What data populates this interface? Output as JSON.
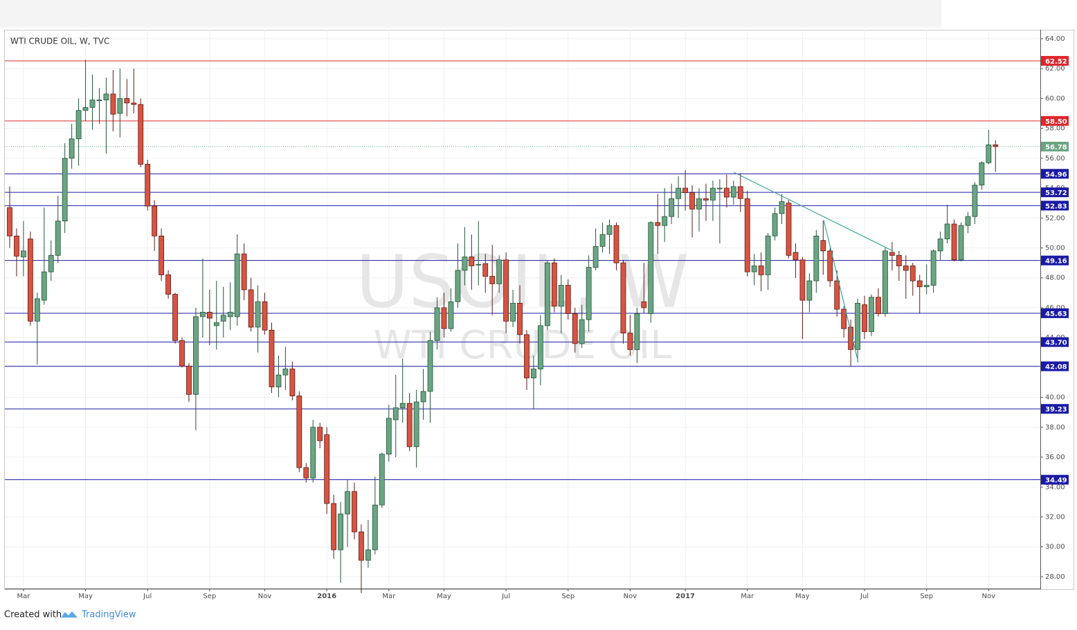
{
  "chart_data": {
    "type": "candlestick",
    "title": "WTI CRUDE OIL, W, TVC",
    "watermark": [
      "USOIL, W",
      "WTI CRUDE OIL"
    ],
    "footer": {
      "prefix": "Created with",
      "brand": "TradingView"
    },
    "up_color": "#6ba583",
    "down_color": "#d75442",
    "grid": true,
    "categories": [
      null,
      null,
      "Mar",
      null,
      null,
      null,
      null,
      null,
      null,
      null,
      null,
      "May",
      null,
      null,
      null,
      null,
      null,
      null,
      null,
      null,
      "Jul",
      null,
      null,
      null,
      null,
      null,
      null,
      null,
      null,
      "Sep",
      null,
      null,
      null,
      null,
      null,
      null,
      null,
      "Nov",
      null,
      null,
      null,
      null,
      null,
      null,
      null,
      null,
      "2016",
      null,
      null,
      null,
      null,
      null,
      null,
      null,
      null,
      "Mar",
      null,
      null,
      null,
      null,
      null,
      null,
      null,
      "May",
      null,
      null,
      null,
      null,
      null,
      null,
      null,
      null,
      "Jul",
      null,
      null,
      null,
      null,
      null,
      null,
      null,
      null,
      "Sep",
      null,
      null,
      null,
      null,
      null,
      null,
      null,
      null,
      "Nov",
      null,
      null,
      null,
      null,
      null,
      null,
      null,
      "2017",
      null,
      null,
      null,
      null,
      null,
      null,
      null,
      null,
      "Mar",
      null,
      null,
      null,
      null,
      null,
      null,
      null,
      "May",
      null,
      null,
      null,
      null,
      null,
      null,
      null,
      null,
      "Jul",
      null,
      null,
      null,
      null,
      null,
      null,
      null,
      null,
      "Sep",
      null,
      null,
      null,
      null,
      null,
      null,
      null,
      null,
      "Nov",
      null
    ],
    "open": [
      52.7,
      50.8,
      49.4,
      50.6,
      45.1,
      46.5,
      48.4,
      49.5,
      51.8,
      56,
      57.3,
      59.2,
      59.4,
      59.9,
      59.9,
      60.3,
      59,
      60,
      59.7,
      59.6,
      55.6,
      52.8,
      50.8,
      48.2,
      46.9,
      43.8,
      42.1,
      40.2,
      45.4,
      45.7,
      44.8,
      45.1,
      45.4,
      45.4,
      49.6,
      47.2,
      44.7,
      46.4,
      44.5,
      40.7,
      41.5,
      41.9,
      40.1,
      35.3,
      34.6,
      38,
      37.5,
      32.9,
      29.8,
      32.2,
      33.7,
      31,
      29.1,
      29.8,
      32.8,
      36.2,
      38.5,
      39.3,
      39.6,
      36.7,
      39.7,
      40.4,
      43.8,
      46,
      44.6,
      46.4,
      48.5,
      49.4,
      48.9,
      48.95,
      48.1,
      47.6,
      49.2,
      45.1,
      46.3,
      44.2,
      41.3,
      41.9,
      44.8,
      49,
      46.1,
      47.5,
      45.6,
      43.6,
      45.2,
      48.7,
      50.1,
      50.9,
      51.5,
      49,
      44.3,
      43.2,
      46.4,
      45.6,
      51.7,
      51.5,
      52.1,
      53.3,
      54,
      53.7,
      52.6,
      53.3,
      53.2,
      54,
      54,
      53.4,
      54.1,
      53.3,
      48.4,
      48.8,
      48.2,
      50.8,
      52.3,
      53,
      49.7,
      49.2,
      46.5,
      47.8,
      50.5,
      49.8,
      47.8,
      45.9,
      44.7,
      43.2,
      46.2,
      44.4,
      46.7,
      45.6,
      49.7,
      49.5,
      48.8,
      48.8,
      47.8,
      47.4,
      47.5,
      49.8,
      50.6,
      51.6,
      49.2,
      51.5,
      52.1,
      54.2,
      55.7,
      56.9
    ],
    "high": [
      54.1,
      51.3,
      51.8,
      51.1,
      47,
      52.7,
      50.5,
      53.5,
      57,
      58.3,
      60,
      62.6,
      61.6,
      60.7,
      61.4,
      61.9,
      62,
      61.3,
      62,
      60,
      55.9,
      53.2,
      51.3,
      48.5,
      47,
      44,
      42.3,
      46,
      49.3,
      47.2,
      47.8,
      47.4,
      47.7,
      50.9,
      50.3,
      48,
      47.5,
      47,
      45,
      42.8,
      43.4,
      42.4,
      40.4,
      35.6,
      38.5,
      38.3,
      38,
      33.5,
      33,
      34.5,
      34.3,
      31.5,
      31.8,
      34.7,
      36.3,
      39.5,
      41.5,
      42.6,
      40.3,
      40.5,
      41.9,
      44.4,
      46.7,
      47,
      47.3,
      50.3,
      51.4,
      50.9,
      51.8,
      49.6,
      50.2,
      49.5,
      49.7,
      47.2,
      47.5,
      44.5,
      42.8,
      45.5,
      49.2,
      49.3,
      48.2,
      47.9,
      46,
      46.2,
      49.5,
      51.3,
      51.7,
      51.9,
      51.7,
      49.2,
      45.5,
      46,
      49,
      51.8,
      53.6,
      54,
      54.3,
      54.8,
      55.2,
      54.2,
      54,
      54.3,
      54.5,
      54.6,
      54.9,
      54.5,
      55,
      53.8,
      49.6,
      49.7,
      51,
      52.7,
      53.6,
      53.2,
      50.3,
      49.4,
      48.3,
      51.2,
      51.8,
      50,
      48.5,
      46.1,
      45.2,
      46.6,
      46.8,
      46.9,
      47.3,
      50,
      50.4,
      49.8,
      49.5,
      49,
      48.2,
      48.9,
      49.9,
      51.1,
      52.9,
      51.9,
      51.7,
      52.4,
      54.4,
      55.8,
      57.9,
      57.2
    ],
    "low": [
      50,
      48.1,
      48.1,
      44.8,
      42.2,
      46.2,
      47.8,
      49,
      51,
      55.3,
      55.5,
      58.5,
      57.9,
      58.3,
      56.3,
      57.8,
      57.4,
      58.8,
      59,
      55.4,
      52.5,
      49.8,
      47.8,
      46.6,
      43.6,
      42,
      39.7,
      37.8,
      44,
      43.5,
      43.2,
      44,
      44.5,
      44.8,
      46.5,
      44.4,
      43,
      44.2,
      40.3,
      40,
      40.5,
      39.8,
      35,
      34.3,
      34.3,
      36.6,
      32.2,
      29.2,
      27.6,
      30,
      30.5,
      26.9,
      28.6,
      29.5,
      32.6,
      35.7,
      36,
      38.3,
      36.4,
      35.3,
      38.5,
      38.3,
      43.2,
      44,
      44.4,
      46,
      47.5,
      47.2,
      47.5,
      47,
      45.5,
      47,
      44.3,
      44.7,
      43.6,
      40.5,
      39.2,
      40.8,
      44.5,
      45.7,
      44.3,
      45.2,
      43,
      43.3,
      44.4,
      48.5,
      49.7,
      49.6,
      48.5,
      43.6,
      42.8,
      42.3,
      45.6,
      45,
      49.6,
      50.4,
      51.6,
      52,
      52.5,
      50.7,
      51.1,
      51.8,
      51.8,
      50.3,
      52.7,
      52.9,
      52.4,
      48.1,
      47.5,
      47.1,
      47.2,
      50.5,
      51.6,
      49.3,
      48,
      43.9,
      45.7,
      47,
      48.2,
      47.4,
      45.4,
      44,
      42.1,
      42.4,
      43.9,
      44.1,
      45.4,
      45.4,
      48.5,
      47.8,
      46.6,
      46.8,
      45.6,
      46.9,
      47,
      49.2,
      50.3,
      49.1,
      49.1,
      51,
      51.6,
      53.9,
      55.6,
      55.1
    ],
    "close": [
      50.8,
      49.45,
      49.8,
      45.1,
      46.6,
      48.4,
      49.5,
      51.8,
      56,
      57.3,
      59.2,
      59.4,
      59.9,
      59.9,
      60.3,
      58.95,
      60,
      59.7,
      59.6,
      55.6,
      52.8,
      50.8,
      48.2,
      46.9,
      43.8,
      42.1,
      40.2,
      45.4,
      45.7,
      45.3,
      45,
      45.5,
      45.7,
      49.6,
      47.2,
      44.7,
      46.4,
      44.5,
      40.7,
      41.5,
      41.9,
      40.1,
      35.3,
      34.6,
      38,
      37.1,
      32.9,
      29.8,
      32.2,
      33.7,
      31,
      29.1,
      29.8,
      32.8,
      36.2,
      38.6,
      39.3,
      39.6,
      36.7,
      39.7,
      40.4,
      43.8,
      46,
      44.6,
      46.4,
      48.5,
      49.4,
      48.8,
      48.9,
      48.1,
      47.6,
      49.2,
      45.1,
      46.3,
      44.2,
      41.3,
      41.9,
      44.8,
      49,
      46.1,
      47.5,
      45.6,
      43.6,
      45.2,
      48.7,
      50.1,
      50.9,
      51.5,
      49,
      44.3,
      43.2,
      45.6,
      46,
      51.7,
      51.5,
      52.1,
      53.3,
      54,
      53.7,
      52.6,
      53.3,
      53.2,
      54,
      54,
      53.4,
      54.1,
      53.3,
      48.4,
      48.8,
      48.2,
      50.8,
      52.3,
      53.1,
      49.5,
      49.2,
      46.5,
      47.8,
      50.8,
      49.8,
      47.8,
      45.9,
      44.6,
      43.2,
      46.3,
      44.4,
      46.7,
      45.6,
      49.8,
      49.5,
      48.8,
      48.5,
      47.8,
      47.4,
      47.5,
      49.8,
      50.6,
      51.6,
      49.2,
      51.5,
      52.1,
      54.2,
      55.7,
      56.9,
      56.78
    ],
    "ylim": [
      27.21,
      64.6
    ],
    "yticks": [
      {
        "value": 28,
        "label": "28.00"
      },
      {
        "value": 30,
        "label": "30.00"
      },
      {
        "value": 32,
        "label": "32.00"
      },
      {
        "value": 34,
        "label": "34.00"
      },
      {
        "value": 36,
        "label": "36.00"
      },
      {
        "value": 38,
        "label": "38.00"
      },
      {
        "value": 40,
        "label": "40.00"
      },
      {
        "value": 42,
        "label": "42.00"
      },
      {
        "value": 44,
        "label": "44.00"
      },
      {
        "value": 46,
        "label": "46.00"
      },
      {
        "value": 48,
        "label": "48.00"
      },
      {
        "value": 50,
        "label": "50.00"
      },
      {
        "value": 52,
        "label": "52.00"
      },
      {
        "value": 54,
        "label": "54.00"
      },
      {
        "value": 56,
        "label": "56.00"
      },
      {
        "value": 58,
        "label": "58.00"
      },
      {
        "value": 60,
        "label": "60.00"
      },
      {
        "value": 62,
        "label": "62.00"
      },
      {
        "value": 64,
        "label": "64.00"
      }
    ],
    "last_color": "#6ba583",
    "levels": [
      {
        "price": 62.52,
        "color": "#e0262b"
      },
      {
        "price": {
          "value": 58.5,
          "label": "58.50"
        },
        "color": "#e0262b"
      },
      {
        "price": 54.96,
        "color": "#1a1aa6"
      },
      {
        "price": 53.72,
        "color": "#1a1aa6"
      },
      {
        "price": 52.83,
        "color": "#1a1aa6"
      },
      {
        "price": 49.16,
        "color": "#1a1aa6"
      },
      {
        "price": 45.63,
        "color": "#1a1aa6"
      },
      {
        "price": {
          "value": 43.7,
          "label": "43.70"
        },
        "color": "#1a1aa6"
      },
      {
        "price": 42.08,
        "color": "#1a1aa6"
      },
      {
        "price": 39.23,
        "color": "#1a1aa6"
      },
      {
        "price": 34.49,
        "color": "#1a1aa6"
      }
    ]
  }
}
